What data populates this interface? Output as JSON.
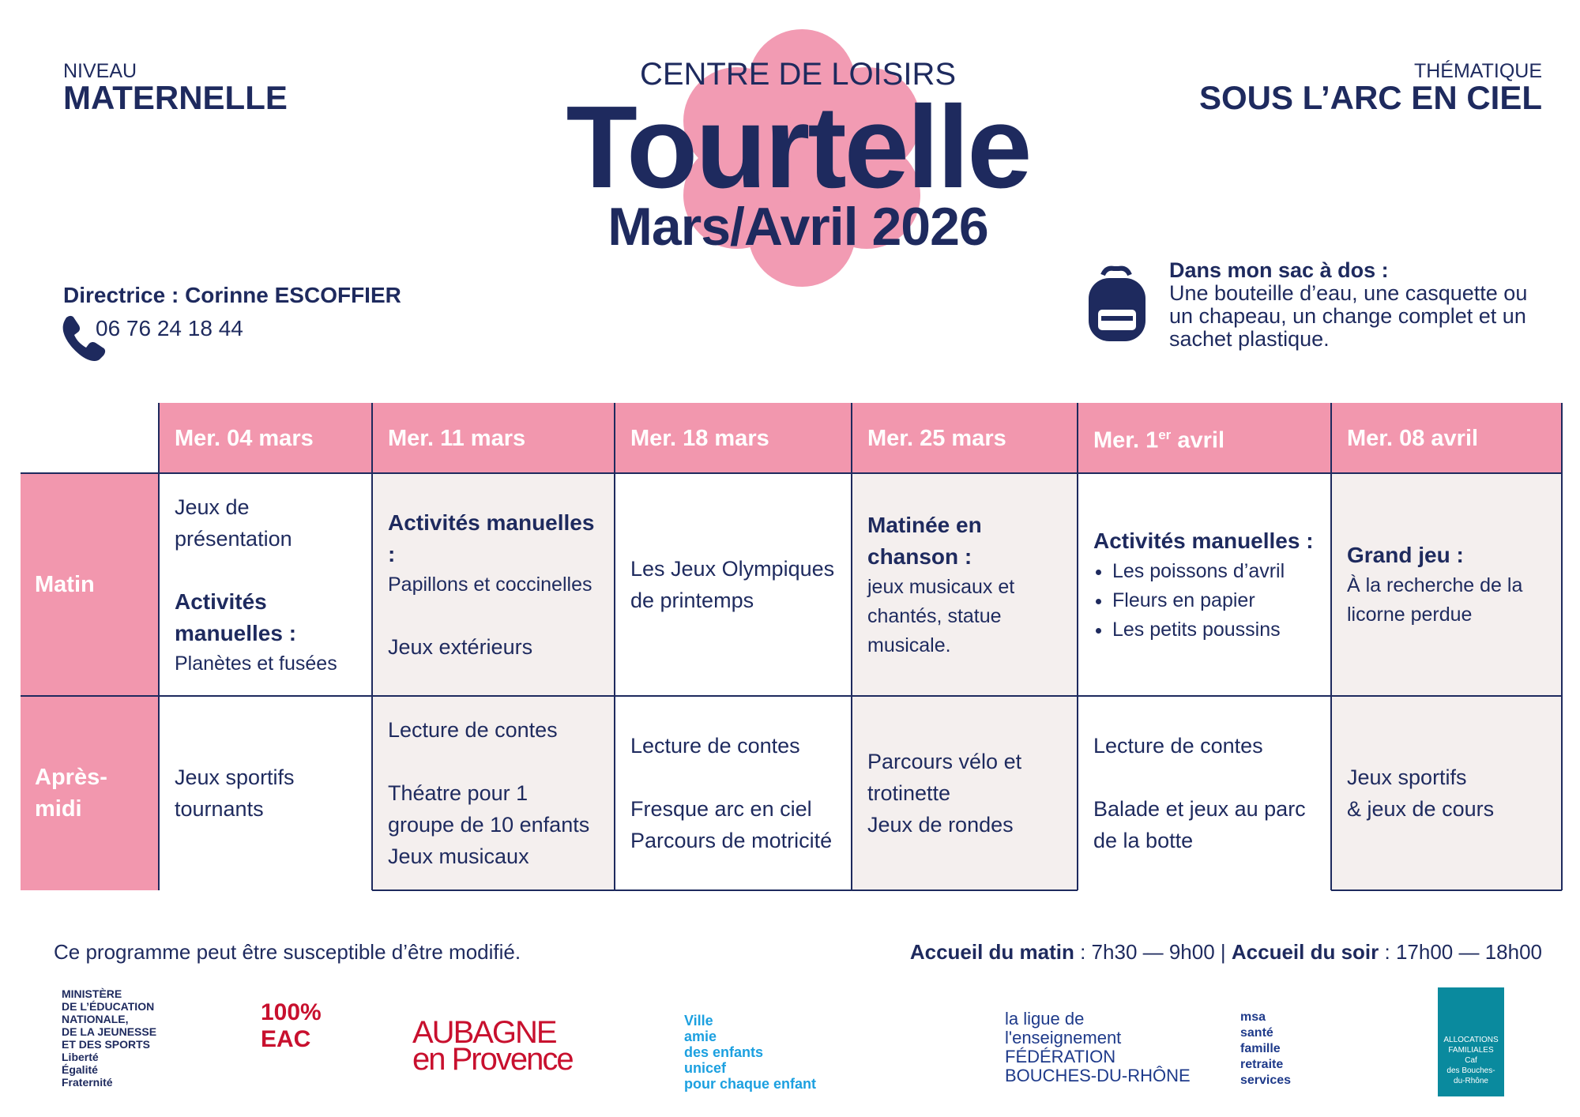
{
  "header": {
    "level_label": "NIVEAU",
    "level": "MATERNELLE",
    "subtitle": "CENTRE DE LOISIRS",
    "title": "Tourtelle",
    "period": "Mars/Avril 2026",
    "theme_label": "THÉMATIQUE",
    "theme": "SOUS L’ARC EN CIEL"
  },
  "contact": {
    "director": "Directrice : Corinne ESCOFFIER",
    "phone": "06 76 24 18 44"
  },
  "bag": {
    "title": "Dans mon sac à dos :",
    "text": "Une bouteille d’eau, une casquette ou un chapeau, un change complet et un sachet plastique."
  },
  "table": {
    "columns": [
      {
        "text": "Mer. 04 mars"
      },
      {
        "text": "Mer. 11 mars"
      },
      {
        "text": "Mer. 18 mars"
      },
      {
        "text": "Mer. 25 mars"
      },
      {
        "text": "Mer. 1",
        "sup": "er",
        "after": " avril"
      },
      {
        "text": "Mer. 08 avril"
      }
    ],
    "rows": [
      {
        "label": "Matin",
        "cells": [
          [
            {
              "style": "text",
              "lines": [
                "Jeux de présentation"
              ]
            },
            {
              "style": "heading",
              "lines": [
                "Activités manuelles :"
              ]
            },
            {
              "style": "small",
              "lines": [
                "Planètes et fusées"
              ]
            }
          ],
          [
            {
              "style": "heading",
              "lines": [
                "Activités manuelles :"
              ]
            },
            {
              "style": "small",
              "lines": [
                "Papillons et coccinelles"
              ]
            },
            {
              "style": "text",
              "lines": [
                "Jeux extérieurs"
              ]
            }
          ],
          [
            {
              "style": "text",
              "lines": [
                "Les Jeux Olympiques de printemps"
              ]
            }
          ],
          [
            {
              "style": "heading",
              "lines": [
                "Matinée en chanson :"
              ]
            },
            {
              "style": "small",
              "lines": [
                "jeux musicaux et chantés, statue musicale."
              ]
            }
          ],
          [
            {
              "style": "heading",
              "lines": [
                "Activités manuelles :"
              ]
            },
            {
              "style": "list",
              "lines": [
                "Les poissons d’avril",
                "Fleurs en papier",
                "Les petits poussins"
              ]
            }
          ],
          [
            {
              "style": "heading",
              "lines": [
                "Grand jeu :"
              ]
            },
            {
              "style": "small",
              "lines": [
                "À la recherche de la licorne perdue"
              ]
            }
          ]
        ]
      },
      {
        "label": "Après-midi",
        "cells": [
          [
            {
              "style": "text",
              "lines": [
                "Jeux sportifs tournants"
              ]
            }
          ],
          [
            {
              "style": "text",
              "lines": [
                "Lecture de contes"
              ]
            },
            {
              "style": "text",
              "lines": [
                "Théatre pour 1 groupe de 10 enfants",
                "Jeux musicaux"
              ]
            }
          ],
          [
            {
              "style": "text",
              "lines": [
                "Lecture de contes"
              ]
            },
            {
              "style": "text",
              "lines": [
                "Fresque arc en ciel",
                "Parcours de motricité"
              ]
            }
          ],
          [
            {
              "style": "text",
              "lines": [
                "Parcours vélo et trotinette",
                "Jeux de rondes"
              ]
            }
          ],
          [
            {
              "style": "text",
              "lines": [
                "Lecture de contes"
              ]
            },
            {
              "style": "text",
              "lines": [
                "Balade et jeux au parc de la botte"
              ]
            }
          ],
          [
            {
              "style": "text",
              "lines": [
                "Jeux sportifs",
                "& jeux de cours"
              ]
            }
          ]
        ]
      }
    ]
  },
  "footer": {
    "note": "Ce programme peut être susceptible d’être modifié.",
    "hours": [
      {
        "label": "Accueil du matin",
        "text": " : 7h30 — 9h00 | "
      },
      {
        "label": "Accueil du soir",
        "text": " : 17h00 — 18h00"
      }
    ]
  },
  "logos": [
    {
      "lines": [
        "MINISTÈRE",
        "DE L’ÉDUCATION",
        "NATIONALE,",
        "DE LA JEUNESSE",
        "ET DES SPORTS",
        "Liberté",
        "Égalité",
        "Fraternité"
      ]
    },
    {
      "lines": [
        "100%",
        "EAC"
      ]
    },
    {
      "lines": [
        "AUBAGNE",
        "en Provence"
      ]
    },
    {
      "lines": [
        "Ville",
        "amie",
        "des enfants",
        "unicef",
        "pour chaque enfant"
      ]
    },
    {
      "lines": [
        "la ligue de",
        "l'enseignement",
        "FÉDÉRATION",
        "BOUCHES-DU-RHÔNE"
      ]
    },
    {
      "lines": [
        "msa",
        "santé",
        "famille",
        "retraite",
        "services"
      ]
    },
    {
      "lines": [
        "ALLOCATIONS",
        "FAMILIALES",
        "Caf",
        "des Bouches-",
        "du-Rhône"
      ]
    }
  ]
}
